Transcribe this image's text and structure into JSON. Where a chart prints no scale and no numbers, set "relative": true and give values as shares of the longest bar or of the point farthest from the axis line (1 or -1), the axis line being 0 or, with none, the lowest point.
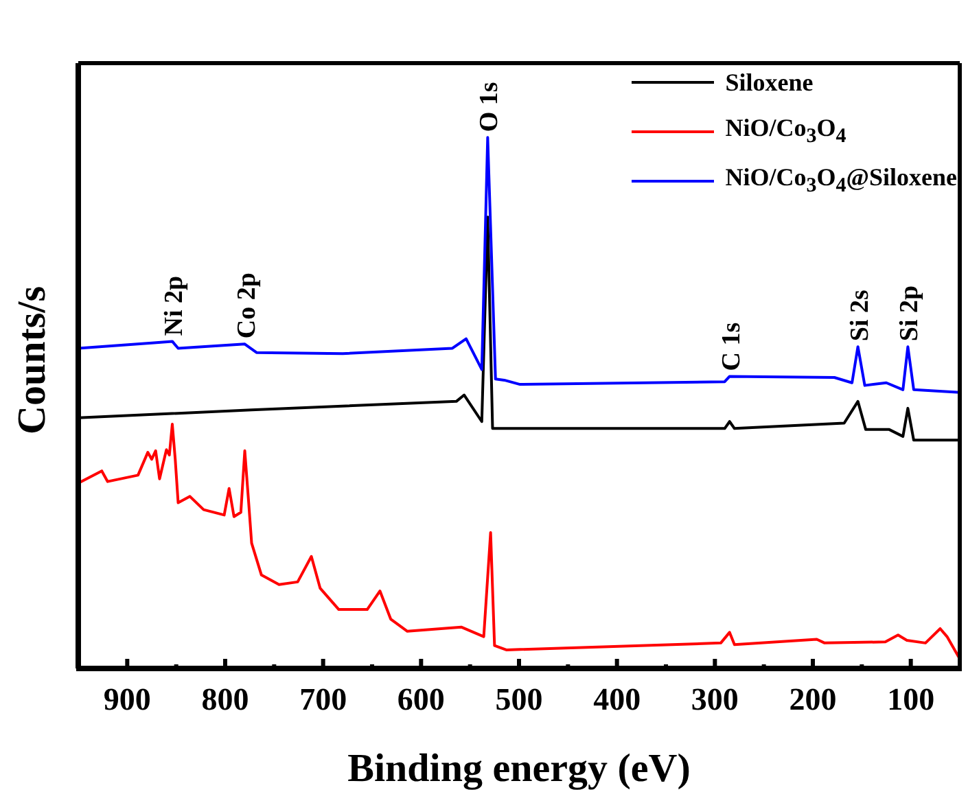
{
  "chart_data": {
    "type": "line",
    "xlabel": "Binding energy (eV)",
    "ylabel": "Counts/s",
    "relative": true,
    "xlim": [
      950,
      50
    ],
    "xticks": [
      {
        "value": 950,
        "label": null
      },
      900,
      {
        "value": 850,
        "label": null
      },
      800,
      {
        "value": 750,
        "label": null
      },
      700,
      {
        "value": 650,
        "label": null
      },
      600,
      {
        "value": 550,
        "label": null
      },
      500,
      {
        "value": 450,
        "label": null
      },
      400,
      {
        "value": 350,
        "label": null
      },
      300,
      {
        "value": 250,
        "label": null
      },
      200,
      {
        "value": 150,
        "label": null
      },
      100,
      {
        "value": 50,
        "label": null
      }
    ],
    "legend": "top right",
    "marker": "none",
    "line_style": "solid",
    "series": [
      {
        "name": "Siloxene",
        "color": "#000000",
        "x": [
          950,
          773,
          564,
          556,
          538,
          532,
          527,
          513,
          290,
          285,
          280,
          168,
          154,
          146,
          122,
          108,
          103,
          97,
          50
        ],
        "values": [
          0.472,
          0.487,
          0.503,
          0.515,
          0.465,
          0.85,
          0.452,
          0.452,
          0.452,
          0.465,
          0.452,
          0.462,
          0.503,
          0.45,
          0.45,
          0.437,
          0.49,
          0.43,
          0.43
        ]
      },
      {
        "name": "NiO/Co$_{3}$O$_{4}$",
        "color": "#ff0000",
        "x": [
          950,
          926,
          920,
          889,
          879,
          875,
          871,
          867,
          860,
          857,
          854,
          851,
          848,
          836,
          822,
          801,
          796,
          791,
          784,
          780,
          776,
          773,
          763,
          745,
          726,
          712,
          703,
          684,
          655,
          642,
          631,
          614,
          559,
          536,
          529,
          525,
          513,
          294,
          285,
          280,
          196,
          188,
          126,
          113,
          104,
          85,
          70,
          63,
          50
        ],
        "values": [
          0.349,
          0.372,
          0.352,
          0.364,
          0.407,
          0.394,
          0.41,
          0.357,
          0.412,
          0.402,
          0.46,
          0.394,
          0.312,
          0.324,
          0.299,
          0.289,
          0.339,
          0.286,
          0.294,
          0.41,
          0.312,
          0.236,
          0.176,
          0.158,
          0.163,
          0.211,
          0.151,
          0.111,
          0.111,
          0.146,
          0.093,
          0.07,
          0.078,
          0.06,
          0.256,
          0.043,
          0.035,
          0.048,
          0.068,
          0.045,
          0.055,
          0.048,
          0.05,
          0.063,
          0.053,
          0.048,
          0.075,
          0.06,
          0.018
        ]
      },
      {
        "name": "NiO/Co$_{3}$O$_{4}$@Siloxene",
        "color": "#0000ff",
        "x": [
          950,
          875,
          854,
          848,
          780,
          768,
          680,
          568,
          554,
          538,
          532,
          524,
          515,
          499,
          290,
          285,
          178,
          160,
          154,
          147,
          125,
          108,
          103,
          97,
          50
        ],
        "values": [
          0.603,
          0.613,
          0.616,
          0.603,
          0.611,
          0.595,
          0.593,
          0.603,
          0.621,
          0.563,
          1,
          0.545,
          0.543,
          0.535,
          0.54,
          0.55,
          0.548,
          0.538,
          0.606,
          0.533,
          0.538,
          0.525,
          0.606,
          0.525,
          0.52
        ]
      }
    ],
    "annotations": [
      {
        "text": "Ni 2p",
        "x": 854,
        "y": 0.616
      },
      {
        "text": "Co 2p",
        "x": 780,
        "y": 0.611
      },
      {
        "text": "O 1s",
        "x": 532,
        "y": 1
      },
      {
        "text": "C 1s",
        "x": 285,
        "y": 0.55
      },
      {
        "text": "Si 2s",
        "x": 154,
        "y": 0.606
      },
      {
        "text": "Si 2p",
        "x": 103,
        "y": 0.606
      }
    ]
  }
}
